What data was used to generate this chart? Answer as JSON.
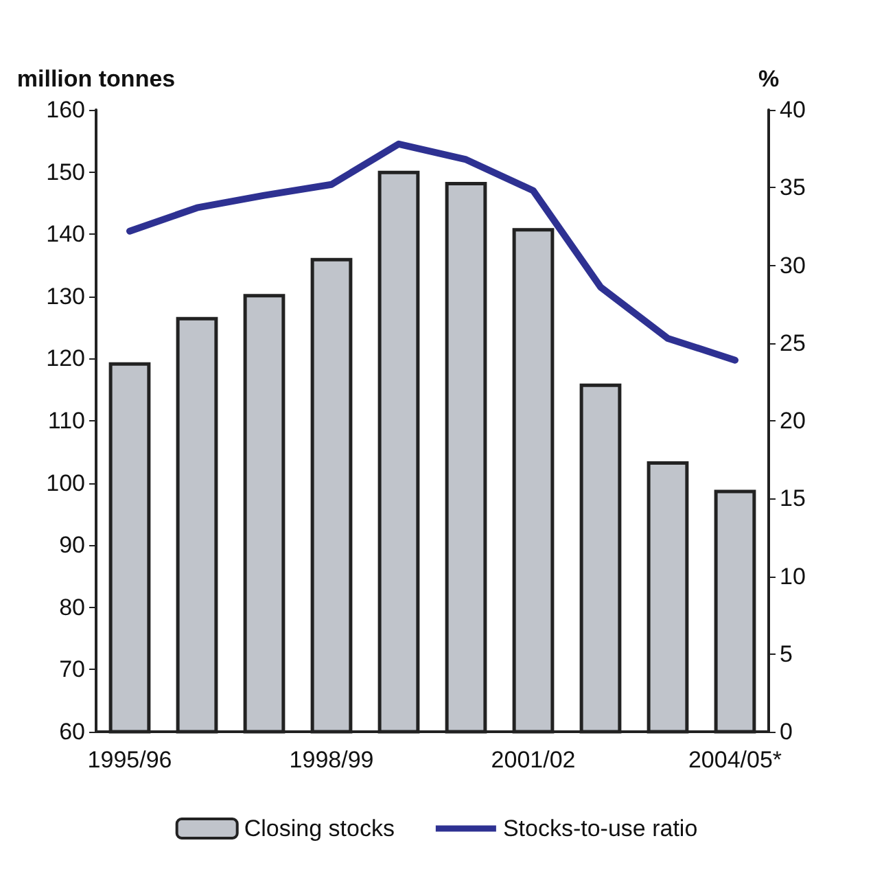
{
  "chart_data": {
    "type": "bar",
    "ylabel": "million tonnes",
    "y2label": "%",
    "categories": [
      "1995/96",
      null,
      null,
      "1998/99",
      null,
      null,
      "2001/02",
      null,
      null,
      "2004/05*"
    ],
    "series": [
      {
        "name": "Closing stocks",
        "color": "#c0c4cb",
        "values": [
          119.4,
          126.7,
          130.4,
          136.2,
          150.2,
          148.4,
          141.0,
          116.0,
          103.5,
          98.9
        ]
      },
      {
        "name": "Stocks-to-use ratio",
        "type": "line",
        "axis": "y2",
        "color": "#2e3192",
        "values": [
          32.2,
          33.7,
          34.5,
          35.2,
          37.8,
          36.8,
          34.8,
          28.6,
          25.3,
          23.9
        ]
      }
    ],
    "ylim": [
      60,
      160
    ],
    "yticks": [
      60,
      70,
      80,
      90,
      100,
      110,
      120,
      130,
      140,
      150,
      160
    ],
    "y2lim": [
      0,
      40
    ],
    "y2ticks": [
      0,
      5,
      10,
      15,
      20,
      25,
      30,
      35,
      40
    ],
    "grid": false,
    "legend": "bottom",
    "marker": "none",
    "line_style": "solid"
  }
}
